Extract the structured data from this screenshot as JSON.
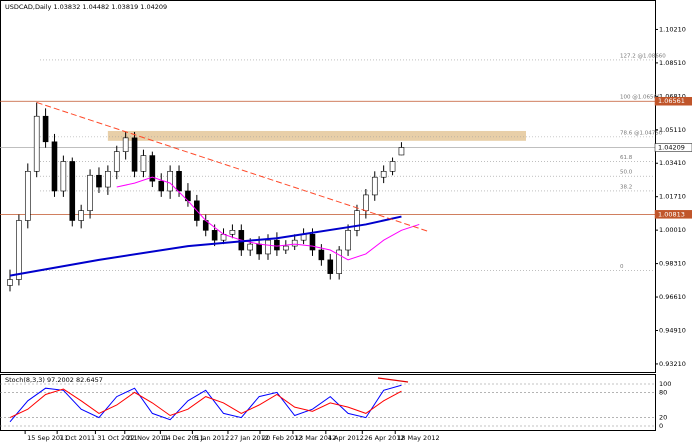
{
  "chart_data": [
    {
      "type": "candlestick",
      "title": "USDCAD,Daily 1.03832 1.04482 1.03819 1.04209",
      "xlim": [
        0,
        72.5
      ],
      "xticks": [
        {
          "value": 1.7,
          "label": "15 Sep 2011"
        },
        {
          "value": 5.3,
          "label": "7 Oct 2011"
        },
        {
          "value": 9.6,
          "label": "31 Oct 2011"
        },
        {
          "value": 12.9,
          "label": "22 Nov 2011"
        },
        {
          "value": 16.9,
          "label": "14 Dec 2011"
        },
        {
          "value": 20.5,
          "label": "5 Jan 2012"
        },
        {
          "value": 24.5,
          "label": "27 Jan 2012"
        },
        {
          "value": 28.1,
          "label": "20 Feb 2012"
        },
        {
          "value": 31.8,
          "label": "13 Mar 2012"
        },
        {
          "value": 35.5,
          "label": "4 Apr 2012"
        },
        {
          "value": 39.6,
          "label": "26 Apr 2012"
        },
        {
          "value": 43.3,
          "label": "18 May 2012"
        }
      ],
      "ylim": [
        0.928,
        1.113
      ],
      "yticks": [
        {
          "value": 0.9321,
          "label": "0.93210"
        },
        {
          "value": 0.9491,
          "label": "0.94910"
        },
        {
          "value": 0.9661,
          "label": "0.96610"
        },
        {
          "value": 0.9831,
          "label": "0.98310"
        },
        {
          "value": 1.0001,
          "label": "1.00010"
        },
        {
          "value": 1.0171,
          "label": "1.01710"
        },
        {
          "value": 1.0341,
          "label": "1.03410"
        },
        {
          "value": 1.0511,
          "label": "1.05110"
        },
        {
          "value": 1.0681,
          "label": "1.06810"
        },
        {
          "value": 1.0851,
          "label": "1.08510"
        },
        {
          "value": 1.1021,
          "label": "1.10210"
        }
      ],
      "open": [
        0.972,
        0.975,
        1.005,
        1.03,
        1.058,
        1.045,
        1.02,
        1.035,
        1.005,
        1.01,
        1.028,
        1.022,
        1.03,
        1.04,
        1.047,
        1.03,
        1.038,
        1.025,
        1.02,
        1.03,
        1.02,
        1.015,
        1.005,
        1.0,
        0.995,
        0.998,
        1.0,
        0.99,
        0.993,
        0.988,
        0.995,
        0.99,
        0.992,
        0.995,
        0.998,
        0.99,
        0.985,
        0.978,
        0.99,
        1.0,
        1.01,
        1.018,
        1.027,
        1.03,
        1.0383
      ],
      "high": [
        0.98,
        1.008,
        1.034,
        1.065,
        1.062,
        1.049,
        1.038,
        1.037,
        1.013,
        1.031,
        1.032,
        1.033,
        1.043,
        1.05,
        1.05,
        1.041,
        1.04,
        1.029,
        1.033,
        1.033,
        1.024,
        1.018,
        1.008,
        1.003,
        1.001,
        1.003,
        1.003,
        0.996,
        0.997,
        0.998,
        0.999,
        0.995,
        0.998,
        1.001,
        1.001,
        0.993,
        0.988,
        0.992,
        1.003,
        1.013,
        1.021,
        1.03,
        1.033,
        1.037,
        1.0448
      ],
      "low": [
        0.969,
        0.972,
        1.001,
        1.027,
        1.042,
        1.017,
        1.017,
        1.002,
        1.001,
        1.006,
        1.019,
        1.018,
        1.026,
        1.036,
        1.027,
        1.027,
        1.022,
        1.017,
        1.016,
        1.017,
        1.012,
        1.002,
        0.997,
        0.992,
        0.993,
        0.996,
        0.987,
        0.987,
        0.985,
        0.985,
        0.987,
        0.988,
        0.99,
        0.993,
        0.987,
        0.982,
        0.975,
        0.975,
        0.987,
        0.997,
        1.006,
        1.015,
        1.024,
        1.028,
        1.0382
      ],
      "close": [
        0.975,
        1.005,
        1.03,
        1.058,
        1.045,
        1.02,
        1.035,
        1.005,
        1.01,
        1.028,
        1.022,
        1.03,
        1.04,
        1.047,
        1.03,
        1.038,
        1.025,
        1.02,
        1.03,
        1.02,
        1.015,
        1.005,
        1.0,
        0.995,
        0.998,
        1.0,
        0.99,
        0.993,
        0.988,
        0.995,
        0.99,
        0.992,
        0.995,
        0.998,
        0.99,
        0.985,
        0.978,
        0.99,
        1.0,
        1.01,
        1.018,
        1.027,
        1.03,
        1.035,
        1.0421
      ],
      "overlays": [
        {
          "color": "#ff00ff",
          "x": [
            12,
            14,
            16,
            18,
            20,
            22,
            24,
            26,
            28,
            30,
            32,
            34,
            36,
            38,
            40,
            42,
            44,
            46
          ],
          "values": [
            1.022,
            1.024,
            1.027,
            1.024,
            1.015,
            1.005,
            0.998,
            0.995,
            0.993,
            0.992,
            0.993,
            0.992,
            0.99,
            0.985,
            0.988,
            0.995,
            1.0,
            1.003
          ]
        },
        {
          "color": "#0000cc",
          "x": [
            0,
            10,
            20,
            30,
            40,
            44
          ],
          "values": [
            0.977,
            0.985,
            0.992,
            0.996,
            1.003,
            1.007
          ]
        }
      ],
      "trendline": {
        "color": "#ff4a2a",
        "x": [
          3,
          47
        ],
        "values": [
          1.065,
          0.9995
        ]
      },
      "zone": {
        "color": "#e8cfa8",
        "x": [
          11,
          58
        ],
        "values": [
          1.0455,
          1.0505
        ]
      },
      "fib_levels": [
        {
          "label": "127.2 @1.08660",
          "value": 1.0866
        },
        {
          "label": "100 @1.06561",
          "value": 1.06561
        },
        {
          "label": "78.6 @1.04750",
          "value": 1.0475
        },
        {
          "label": "61.8",
          "value": 1.035
        },
        {
          "label": "50.0",
          "value": 1.0275
        },
        {
          "label": "38.2",
          "value": 1.02
        },
        {
          "label": "0",
          "value": 0.9795
        }
      ],
      "price_levels": [
        {
          "label": "1.06561",
          "value": 1.06561,
          "color": "#c0552a"
        },
        {
          "label": "1.04209",
          "value": 1.04209,
          "color": "#ffffff"
        },
        {
          "label": "1.00813",
          "value": 1.00813,
          "color": "#c0552a"
        }
      ]
    },
    {
      "type": "line",
      "title": "Stoch(8,3,3) 97.2002 82.6457",
      "xlim": [
        0,
        72.5
      ],
      "ylim": [
        0,
        100
      ],
      "yticks": [
        0,
        20,
        80,
        100
      ],
      "x": [
        0,
        2,
        4,
        6,
        8,
        10,
        12,
        14,
        16,
        18,
        20,
        22,
        24,
        26,
        28,
        30,
        32,
        34,
        36,
        38,
        40,
        42,
        44
      ],
      "series": [
        {
          "color": "#0000ff",
          "values": [
            10,
            60,
            90,
            85,
            40,
            20,
            70,
            90,
            30,
            15,
            60,
            85,
            30,
            20,
            70,
            80,
            25,
            40,
            70,
            30,
            20,
            85,
            97
          ]
        },
        {
          "color": "#ff0000",
          "values": [
            20,
            40,
            75,
            88,
            60,
            30,
            50,
            80,
            55,
            25,
            40,
            70,
            55,
            30,
            50,
            75,
            45,
            35,
            55,
            45,
            30,
            60,
            83
          ]
        }
      ]
    }
  ]
}
